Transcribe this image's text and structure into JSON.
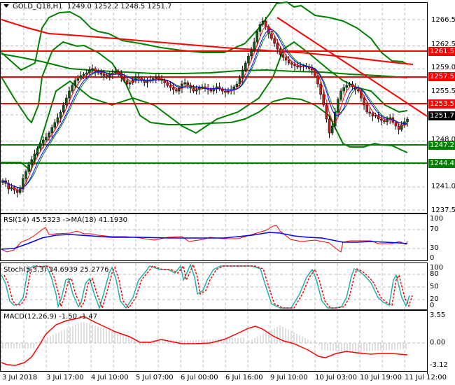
{
  "header": {
    "symbol": "GOLD_Q18,H1",
    "ohlc": "1249.0 1252.2 1248.5 1251.7"
  },
  "colors": {
    "bullish": "#0a5e14",
    "bearish": "#e01010",
    "bollinger": "#008000",
    "resistance": "#ff0000",
    "support": "#008000",
    "ma_fast": "#ff0000",
    "ma_slow": "#0000ff",
    "ma_green": "#008000",
    "rsi": "#ff0000",
    "rsi_ma": "#0000ff",
    "stoch_main": "#20b2aa",
    "stoch_signal": "#ff0000",
    "macd_hist": "#c0c0c0",
    "macd_signal": "#ff0000",
    "grid": "#c0c0c0",
    "current_price_bg": "#000000"
  },
  "panels": {
    "price": {
      "label": "GOLD_Q18,H1 1249.0 1252.2 1248.5 1251.7",
      "y_ticks": [
        "1266.5",
        "1262.5",
        "1259.0",
        "1255.5",
        "1248.0",
        "1241.0",
        "1237.5"
      ],
      "levels": [
        {
          "name": "resistance-1",
          "value": "1261.5",
          "type": "resistance"
        },
        {
          "name": "resistance-2",
          "value": "1257.5",
          "type": "resistance"
        },
        {
          "name": "resistance-3",
          "value": "1253.5",
          "type": "resistance"
        },
        {
          "name": "current-price",
          "value": "1251.7",
          "type": "current"
        },
        {
          "name": "support-1",
          "value": "1247.2",
          "type": "support"
        },
        {
          "name": "support-2",
          "value": "1244.4",
          "type": "support"
        }
      ]
    },
    "rsi": {
      "label": "RSI(14) 45.5323  ->MA(18) 41.1930",
      "y_ticks": [
        "100",
        "70",
        "30",
        "0"
      ]
    },
    "stoch": {
      "label": "Stoch(5,3,3) 34.6939 25.2776",
      "y_ticks": [
        "100",
        "80",
        "50",
        "20",
        "0"
      ]
    },
    "macd": {
      "label": "MACD(12,26,9) -1.50 -1.47",
      "y_ticks": [
        "3.55",
        "0.00",
        "-3.12"
      ]
    }
  },
  "time_axis": {
    "labels": [
      "3 Jul 2018",
      "3 Jul 17:00",
      "4 Jul 10:00",
      "5 Jul 07:00",
      "6 Jul 00:00",
      "6 Jul 16:00",
      "9 Jul 10:00",
      "10 Jul 03:00",
      "10 Jul 19:00",
      "11 Jul 12:00"
    ]
  },
  "chart_data": [
    {
      "type": "candlestick",
      "title": "GOLD_Q18,H1",
      "ohlc_last": {
        "open": 1249.0,
        "high": 1252.2,
        "low": 1248.5,
        "close": 1251.7
      },
      "ylim": [
        1236.5,
        1269.5
      ],
      "y_ticks": [
        1266.5,
        1262.5,
        1259.0,
        1255.5,
        1248.0,
        1241.0,
        1237.5
      ],
      "x_labels": [
        "3 Jul 2018",
        "3 Jul 17:00",
        "4 Jul 10:00",
        "5 Jul 07:00",
        "6 Jul 00:00",
        "6 Jul 16:00",
        "9 Jul 10:00",
        "10 Jul 03:00",
        "10 Jul 19:00",
        "11 Jul 12:00"
      ],
      "horizontal_levels": {
        "resistance": [
          1261.5,
          1257.5,
          1253.5
        ],
        "support": [
          1247.2,
          1244.4
        ],
        "current": 1251.7
      },
      "trendlines": [
        {
          "name": "descending-resistance",
          "from": {
            "x_label": "9 Jul 10:00",
            "price": 1266.8
          },
          "to": {
            "x_label": "11 Jul 12:00",
            "price": 1251.7
          }
        },
        {
          "name": "long-term-ma",
          "from": {
            "x_label": "3 Jul 2018",
            "price": 1266.5
          },
          "to": {
            "x_label": "11 Jul 12:00",
            "price": 1259.8
          }
        }
      ],
      "grid": true,
      "indicators": [
        "Bollinger Bands (wide)",
        "Bollinger Bands (narrow)",
        "Moving averages (red, blue, green)"
      ]
    },
    {
      "type": "line",
      "title": "RSI(14) 45.5323 ->MA(18) 41.1930",
      "ylim": [
        0,
        100
      ],
      "y_ticks": [
        100,
        70,
        30,
        0
      ],
      "series": [
        {
          "name": "RSI(14)",
          "last": 45.5323
        },
        {
          "name": "MA(18)",
          "last": 41.193
        }
      ]
    },
    {
      "type": "line",
      "title": "Stoch(5,3,3) 34.6939 25.2776",
      "ylim": [
        0,
        100
      ],
      "y_ticks": [
        100,
        80,
        50,
        20,
        0
      ],
      "series": [
        {
          "name": "%K",
          "last": 34.6939
        },
        {
          "name": "%D",
          "last": 25.2776
        }
      ]
    },
    {
      "type": "bar",
      "title": "MACD(12,26,9) -1.50 -1.47",
      "ylim": [
        -3.12,
        3.55
      ],
      "y_ticks": [
        3.55,
        0.0,
        -3.12
      ],
      "series": [
        {
          "name": "MACD",
          "last": -1.5
        },
        {
          "name": "Signal",
          "last": -1.47
        }
      ]
    }
  ]
}
